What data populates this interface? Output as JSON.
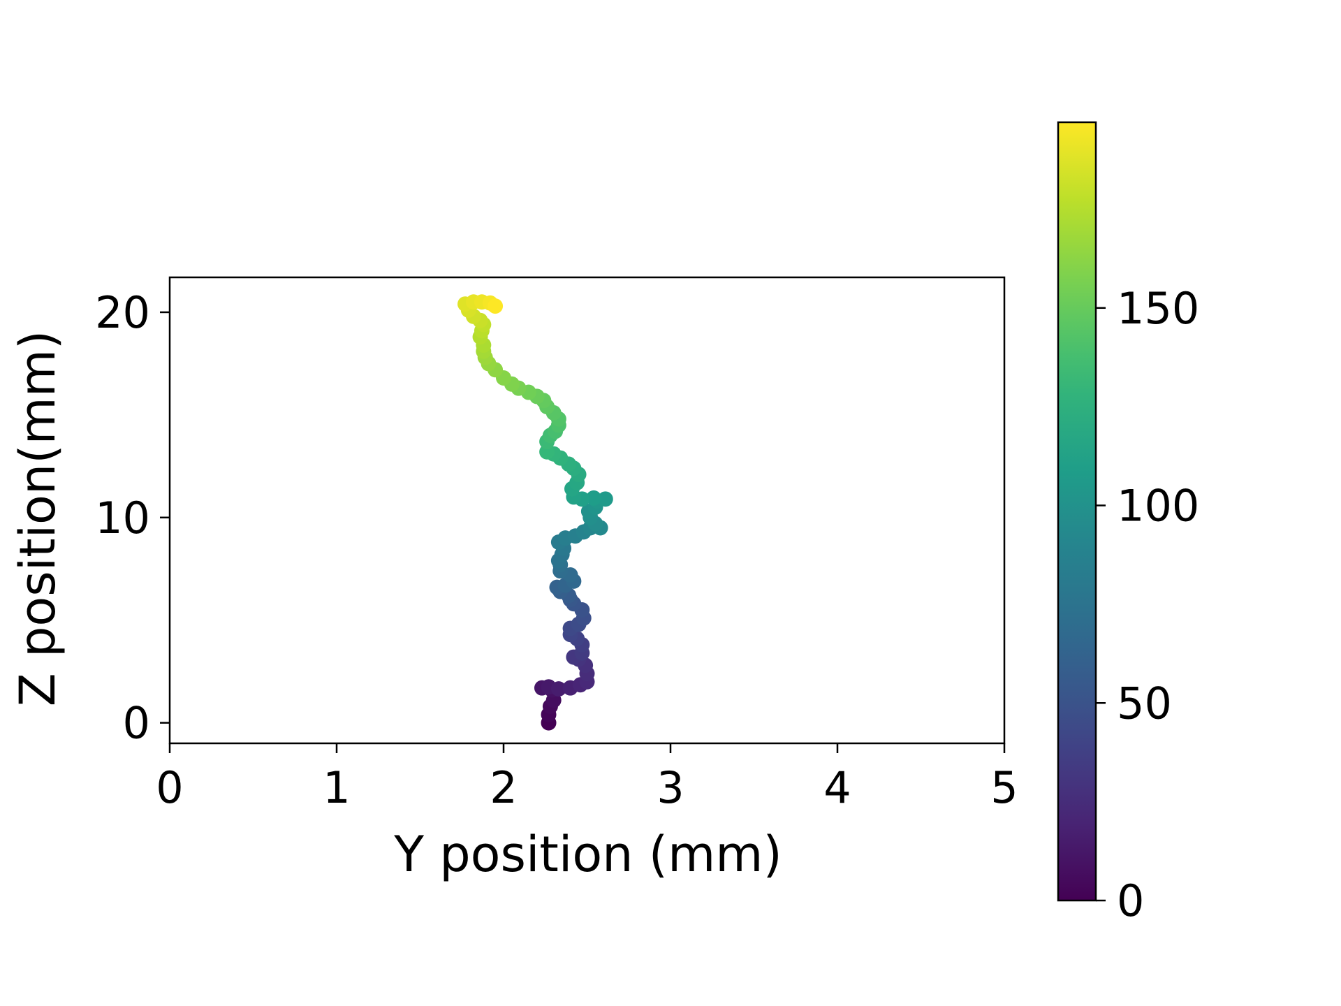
{
  "chart_data": {
    "type": "scatter",
    "title": "",
    "xlabel": "Y position (mm)",
    "ylabel": "Z position(mm)",
    "xlim": [
      0,
      5
    ],
    "ylim": [
      -1,
      21.7
    ],
    "xticks": [
      0,
      1,
      2,
      3,
      4,
      5
    ],
    "yticks": [
      0,
      10,
      20
    ],
    "grid": false,
    "colormap": "viridis",
    "colorbar": {
      "range": [
        0,
        197
      ],
      "ticks": [
        0,
        50,
        100,
        150
      ]
    },
    "point_color": "index",
    "points": [
      [
        2.27,
        0.0
      ],
      [
        2.27,
        0.4
      ],
      [
        2.28,
        0.8
      ],
      [
        2.3,
        1.1
      ],
      [
        2.29,
        1.6
      ],
      [
        2.23,
        1.7
      ],
      [
        2.27,
        1.75
      ],
      [
        2.33,
        1.65
      ],
      [
        2.4,
        1.7
      ],
      [
        2.46,
        1.85
      ],
      [
        2.5,
        2.0
      ],
      [
        2.5,
        2.4
      ],
      [
        2.49,
        2.8
      ],
      [
        2.45,
        3.1
      ],
      [
        2.42,
        3.2
      ],
      [
        2.47,
        3.4
      ],
      [
        2.47,
        3.8
      ],
      [
        2.44,
        4.1
      ],
      [
        2.4,
        4.3
      ],
      [
        2.4,
        4.6
      ],
      [
        2.45,
        4.8
      ],
      [
        2.48,
        5.1
      ],
      [
        2.47,
        5.5
      ],
      [
        2.42,
        5.8
      ],
      [
        2.4,
        6.0
      ],
      [
        2.39,
        6.2
      ],
      [
        2.34,
        6.4
      ],
      [
        2.32,
        6.6
      ],
      [
        2.37,
        6.7
      ],
      [
        2.42,
        6.9
      ],
      [
        2.4,
        7.2
      ],
      [
        2.34,
        7.4
      ],
      [
        2.34,
        7.7
      ],
      [
        2.33,
        7.9
      ],
      [
        2.35,
        8.2
      ],
      [
        2.36,
        8.5
      ],
      [
        2.33,
        8.8
      ],
      [
        2.37,
        9.0
      ],
      [
        2.43,
        9.1
      ],
      [
        2.48,
        9.3
      ],
      [
        2.52,
        9.5
      ],
      [
        2.58,
        9.5
      ],
      [
        2.55,
        9.7
      ],
      [
        2.52,
        10.0
      ],
      [
        2.51,
        10.3
      ],
      [
        2.55,
        10.5
      ],
      [
        2.56,
        10.8
      ],
      [
        2.61,
        10.9
      ],
      [
        2.54,
        10.95
      ],
      [
        2.47,
        10.9
      ],
      [
        2.42,
        11.0
      ],
      [
        2.41,
        11.4
      ],
      [
        2.44,
        11.7
      ],
      [
        2.45,
        12.1
      ],
      [
        2.42,
        12.4
      ],
      [
        2.39,
        12.6
      ],
      [
        2.34,
        12.9
      ],
      [
        2.3,
        13.1
      ],
      [
        2.26,
        13.2
      ],
      [
        2.26,
        13.7
      ],
      [
        2.28,
        14.0
      ],
      [
        2.31,
        14.2
      ],
      [
        2.33,
        14.5
      ],
      [
        2.33,
        14.8
      ],
      [
        2.3,
        15.1
      ],
      [
        2.26,
        15.4
      ],
      [
        2.24,
        15.7
      ],
      [
        2.2,
        15.9
      ],
      [
        2.15,
        16.1
      ],
      [
        2.09,
        16.3
      ],
      [
        2.05,
        16.5
      ],
      [
        2.0,
        16.8
      ],
      [
        1.95,
        17.2
      ],
      [
        1.91,
        17.5
      ],
      [
        1.89,
        17.8
      ],
      [
        1.88,
        18.1
      ],
      [
        1.88,
        18.4
      ],
      [
        1.86,
        18.8
      ],
      [
        1.87,
        19.1
      ],
      [
        1.88,
        19.4
      ],
      [
        1.86,
        19.6
      ],
      [
        1.82,
        19.8
      ],
      [
        1.79,
        20.1
      ],
      [
        1.77,
        20.4
      ],
      [
        1.82,
        20.5
      ],
      [
        1.87,
        20.5
      ],
      [
        1.92,
        20.45
      ],
      [
        1.95,
        20.3
      ]
    ]
  }
}
